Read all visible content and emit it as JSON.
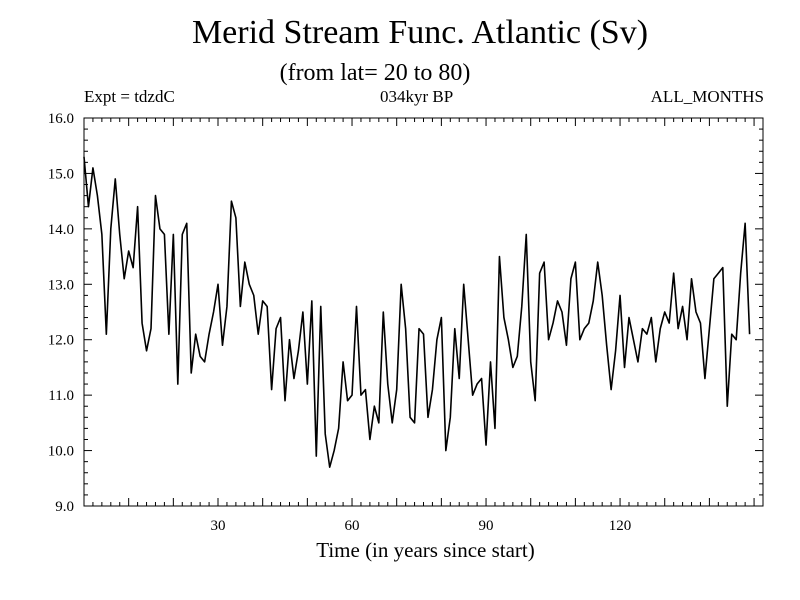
{
  "chart_data": {
    "type": "line",
    "title": "Merid Stream Func. Atlantic (Sv)",
    "subtitle": "(from lat= 20 to 80)",
    "annotations": {
      "left": "Expt = tdzdC",
      "center": "034kyr BP",
      "right": "ALL_MONTHS"
    },
    "xlabel": "Time (in years since start)",
    "ylabel": "",
    "xlim": [
      0,
      152
    ],
    "ylim": [
      9.0,
      16.0
    ],
    "x_ticks": [
      30,
      60,
      90,
      120
    ],
    "y_ticks": [
      "9.0",
      "10.0",
      "11.0",
      "12.0",
      "13.0",
      "14.0",
      "15.0",
      "16.0"
    ],
    "series": [
      {
        "name": "Merid Stream Func.",
        "color": "#000000",
        "values": [
          15.3,
          14.4,
          15.1,
          14.6,
          13.9,
          12.1,
          14.0,
          14.9,
          13.9,
          13.1,
          13.6,
          13.3,
          14.4,
          12.3,
          11.8,
          12.2,
          14.6,
          14.0,
          13.9,
          12.1,
          13.9,
          11.2,
          13.9,
          14.1,
          11.4,
          12.1,
          11.7,
          11.6,
          12.1,
          12.5,
          13.0,
          11.9,
          12.6,
          14.5,
          14.2,
          12.6,
          13.4,
          13.0,
          12.8,
          12.1,
          12.7,
          12.6,
          11.1,
          12.2,
          12.4,
          10.9,
          12.0,
          11.3,
          11.8,
          12.5,
          11.2,
          12.7,
          9.9,
          12.6,
          10.3,
          9.7,
          10.0,
          10.4,
          11.6,
          10.9,
          11.0,
          12.6,
          11.0,
          11.1,
          10.2,
          10.8,
          10.5,
          12.5,
          11.2,
          10.5,
          11.1,
          13.0,
          12.2,
          10.6,
          10.5,
          12.2,
          12.1,
          10.6,
          11.1,
          12.0,
          12.4,
          10.0,
          10.6,
          12.2,
          11.3,
          13.0,
          12.0,
          11.0,
          11.2,
          11.3,
          10.1,
          11.6,
          10.4,
          13.5,
          12.4,
          12.0,
          11.5,
          11.7,
          12.6,
          13.9,
          11.6,
          10.9,
          13.2,
          13.4,
          12.0,
          12.3,
          12.7,
          12.5,
          11.9,
          13.1,
          13.4,
          12.0,
          12.2,
          12.3,
          12.7,
          13.4,
          12.8,
          11.9,
          11.1,
          11.8,
          12.8,
          11.5,
          12.4,
          12.0,
          11.6,
          12.2,
          12.1,
          12.4,
          11.6,
          12.2,
          12.5,
          12.3,
          13.2,
          12.2,
          12.6,
          12.0,
          13.1,
          12.5,
          12.3,
          11.3,
          12.2,
          13.1,
          13.2,
          13.3,
          10.8,
          12.1,
          12.0,
          13.2,
          14.1,
          12.1
        ]
      }
    ]
  }
}
